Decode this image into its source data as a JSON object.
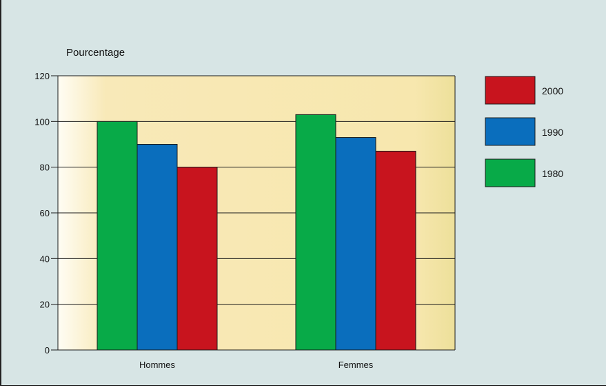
{
  "chart_data": {
    "type": "bar",
    "title": "",
    "ylabel": "Pourcentage",
    "xlabel": "",
    "ylim": [
      0,
      120
    ],
    "yticks": [
      0,
      20,
      40,
      60,
      80,
      100,
      120
    ],
    "categories": [
      "Hommes",
      "Femmes"
    ],
    "series": [
      {
        "name": "1980",
        "values": [
          100,
          103
        ],
        "color": "#08aa48"
      },
      {
        "name": "1990",
        "values": [
          90,
          93
        ],
        "color": "#0a6ebd"
      },
      {
        "name": "2000",
        "values": [
          80,
          87
        ],
        "color": "#c8141e"
      }
    ],
    "legend_order": [
      "2000",
      "1990",
      "1980"
    ],
    "legend_position": "right",
    "grid": true
  }
}
